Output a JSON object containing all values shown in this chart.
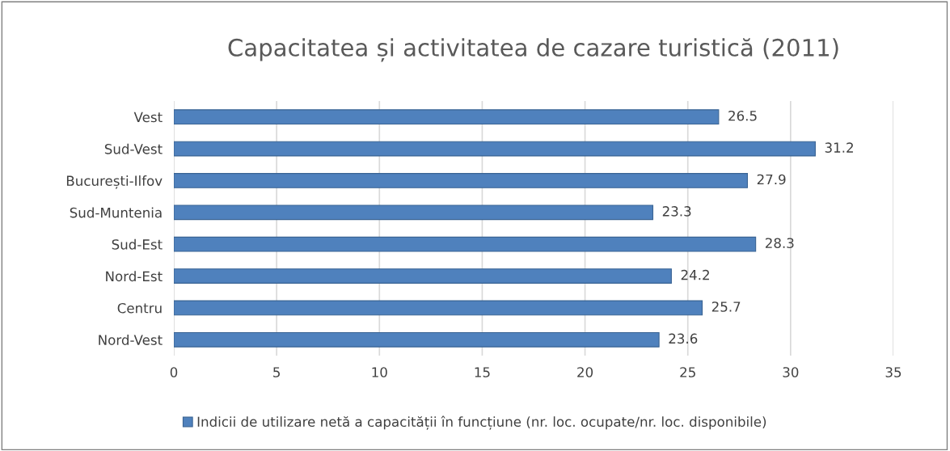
{
  "chart_data": {
    "type": "bar",
    "orientation": "horizontal",
    "title": "Capacitatea și activitatea de cazare turistică (2011)",
    "categories": [
      "Vest",
      "Sud-Vest",
      "București-Ilfov",
      "Sud-Muntenia",
      "Sud-Est",
      "Nord-Est",
      "Centru",
      "Nord-Vest"
    ],
    "series": [
      {
        "name": "Indicii de utilizare netă a capacității în funcțiune (nr. loc. ocupate/nr. loc. disponibile)",
        "color": "#4f81bd",
        "values": [
          26.5,
          31.2,
          27.9,
          23.3,
          28.3,
          24.2,
          25.7,
          23.6
        ]
      }
    ],
    "xlim": [
      0,
      35
    ],
    "xticks": [
      0,
      5,
      10,
      15,
      20,
      25,
      30,
      35
    ],
    "grid": "x",
    "legend": "bottom",
    "data_labels": true
  }
}
